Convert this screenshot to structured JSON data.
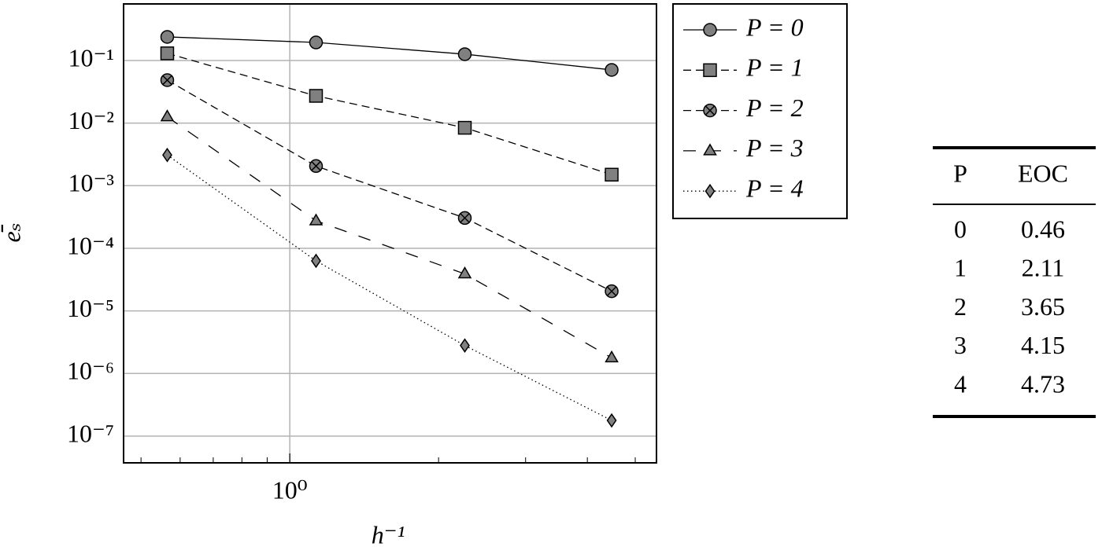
{
  "chart_data": {
    "type": "line",
    "xlabel": "h⁻¹",
    "ylabel": "eₛ̄",
    "x": [
      0.565,
      1.13,
      2.26,
      4.48
    ],
    "xscale": "log",
    "yscale": "log",
    "xlim": [
      0.461,
      5.52
    ],
    "ylim": [
      3.74e-08,
      0.8
    ],
    "xticks": [
      {
        "value": 1,
        "label": "10⁰"
      }
    ],
    "xminorticks": [
      0.5,
      0.6,
      0.7,
      0.8,
      0.9,
      2,
      3,
      4,
      5
    ],
    "yticks": [
      {
        "value": 1e-07,
        "label": "10⁻⁷"
      },
      {
        "value": 1e-06,
        "label": "10⁻⁶"
      },
      {
        "value": 1e-05,
        "label": "10⁻⁵"
      },
      {
        "value": 0.0001,
        "label": "10⁻⁴"
      },
      {
        "value": 0.001,
        "label": "10⁻³"
      },
      {
        "value": 0.01,
        "label": "10⁻²"
      },
      {
        "value": 0.1,
        "label": "10⁻¹"
      }
    ],
    "grid": true,
    "legend": "outside right",
    "series": [
      {
        "name": "P = 0",
        "color": "#000000",
        "marker_color": "#808080",
        "marker": "circle",
        "dash": "solid",
        "values": [
          0.238,
          0.194,
          0.126,
          0.0707
        ]
      },
      {
        "name": "P = 1",
        "color": "#000000",
        "marker_color": "#808080",
        "marker": "square",
        "dash": "dashed",
        "values": [
          0.13,
          0.0272,
          0.00841,
          0.0015
        ]
      },
      {
        "name": "P = 2",
        "color": "#000000",
        "marker_color": "#808080",
        "marker": "circle-x",
        "dash": "dashed",
        "values": [
          0.0485,
          0.00206,
          0.000305,
          2.06e-05
        ]
      },
      {
        "name": "P = 3",
        "color": "#000000",
        "marker_color": "#808080",
        "marker": "triangle",
        "dash": "loosely dashed",
        "values": [
          0.0126,
          0.000275,
          3.9e-05,
          1.78e-06
        ]
      },
      {
        "name": "P = 4",
        "color": "#000000",
        "marker_color": "#808080",
        "marker": "diamond",
        "dash": "dotted",
        "values": [
          0.00309,
          6.3e-05,
          2.8e-06,
          1.78e-07
        ]
      }
    ]
  },
  "table": {
    "columns": [
      "P",
      "EOC"
    ],
    "rows": [
      [
        0,
        0.46
      ],
      [
        1,
        2.11
      ],
      [
        2,
        3.65
      ],
      [
        3,
        4.15
      ],
      [
        4,
        4.73
      ]
    ]
  }
}
